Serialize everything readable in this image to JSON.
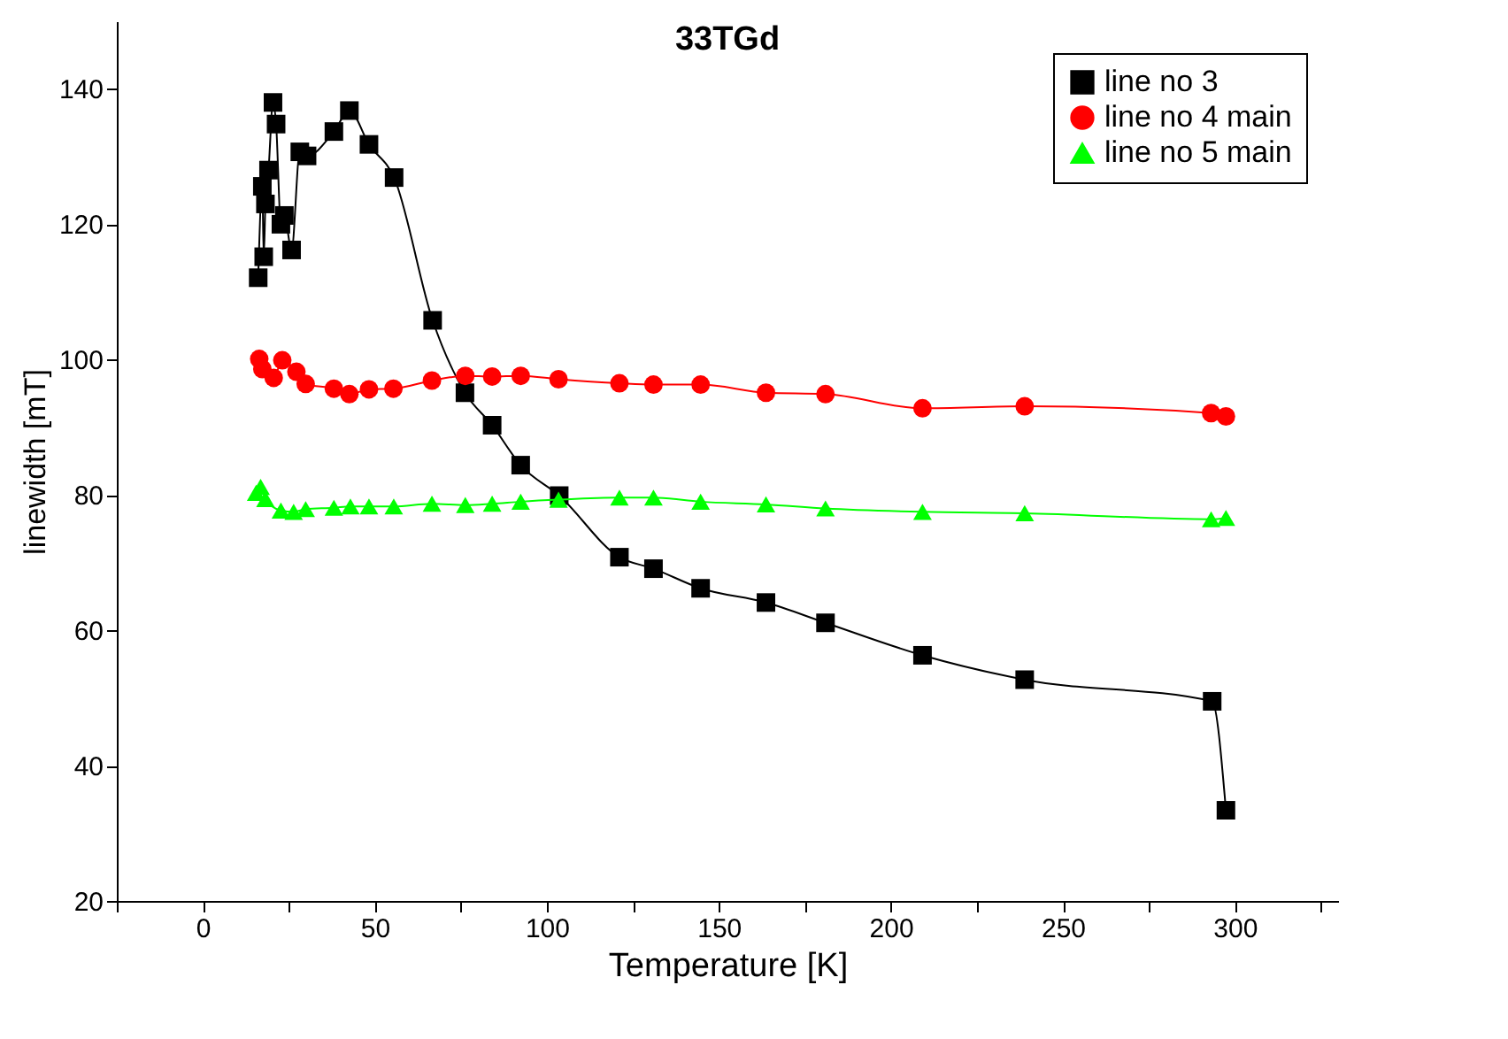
{
  "chart_data": {
    "type": "line",
    "title": "33TGd",
    "xlabel": "Temperature [K]",
    "ylabel": "linewidth [mT]",
    "xlim": [
      -25,
      330
    ],
    "ylim": [
      20,
      150
    ],
    "xticks": [
      {
        "value": -25,
        "label": null
      },
      0,
      {
        "value": 25,
        "label": null
      },
      50,
      {
        "value": 75,
        "label": null
      },
      100,
      {
        "value": 125,
        "label": null
      },
      150,
      {
        "value": 175,
        "label": null
      },
      200,
      {
        "value": 225,
        "label": null
      },
      250,
      {
        "value": 275,
        "label": null
      },
      300,
      {
        "value": 325,
        "label": null
      }
    ],
    "yticks": [
      20,
      40,
      60,
      80,
      100,
      120,
      140
    ],
    "grid": false,
    "legend": "top right",
    "series": [
      {
        "name": "line no 3",
        "color": "#000000",
        "marker": "square",
        "x": [
          16.1,
          17.3,
          17.7,
          18.2,
          19.1,
          20.4,
          21.3,
          22.7,
          23.7,
          25.8,
          28.2,
          30.3,
          38.1,
          42.6,
          48.3,
          55.6,
          66.8,
          76.2,
          84.1,
          92.4,
          103.6,
          121.1,
          131.0,
          144.7,
          163.7,
          181.0,
          209.2,
          238.9,
          293.4,
          297.4
        ],
        "values": [
          112.1,
          125.6,
          115.2,
          123.0,
          128.0,
          138.0,
          134.8,
          120.0,
          121.3,
          116.2,
          130.7,
          130.1,
          133.7,
          136.8,
          131.8,
          126.9,
          105.8,
          95.1,
          90.3,
          84.4,
          79.9,
          70.8,
          69.1,
          66.2,
          64.1,
          61.1,
          56.3,
          52.7,
          49.5,
          33.4
        ]
      },
      {
        "name": "line no 4 main",
        "color": "#ff0000",
        "marker": "circle",
        "x": [
          16.4,
          17.3,
          20.6,
          23.1,
          27.2,
          29.9,
          38.1,
          42.6,
          48.3,
          55.4,
          66.6,
          76.3,
          84.1,
          92.4,
          103.4,
          121.1,
          131.0,
          144.7,
          163.7,
          181.0,
          209.2,
          238.9,
          293.1,
          297.4
        ],
        "values": [
          100.1,
          98.6,
          97.3,
          99.9,
          98.2,
          96.4,
          95.7,
          94.9,
          95.6,
          95.7,
          96.9,
          97.6,
          97.5,
          97.6,
          97.1,
          96.5,
          96.3,
          96.3,
          95.1,
          94.9,
          92.8,
          93.1,
          92.1,
          91.6
        ]
      },
      {
        "name": "line no 5 main",
        "color": "#00ff00",
        "marker": "triangle",
        "x": [
          15.5,
          16.8,
          18.2,
          22.7,
          26.4,
          29.9,
          38.1,
          42.9,
          48.3,
          55.5,
          66.6,
          76.3,
          84.1,
          92.4,
          103.4,
          121.1,
          131.0,
          144.7,
          163.7,
          181.0,
          209.2,
          238.9,
          293.1,
          297.4
        ],
        "values": [
          80.3,
          81.2,
          79.4,
          77.7,
          77.5,
          77.9,
          78.1,
          78.3,
          78.3,
          78.3,
          78.7,
          78.5,
          78.7,
          79.0,
          79.3,
          79.6,
          79.6,
          79.0,
          78.6,
          78.0,
          77.5,
          77.3,
          76.4,
          76.6
        ]
      }
    ]
  }
}
